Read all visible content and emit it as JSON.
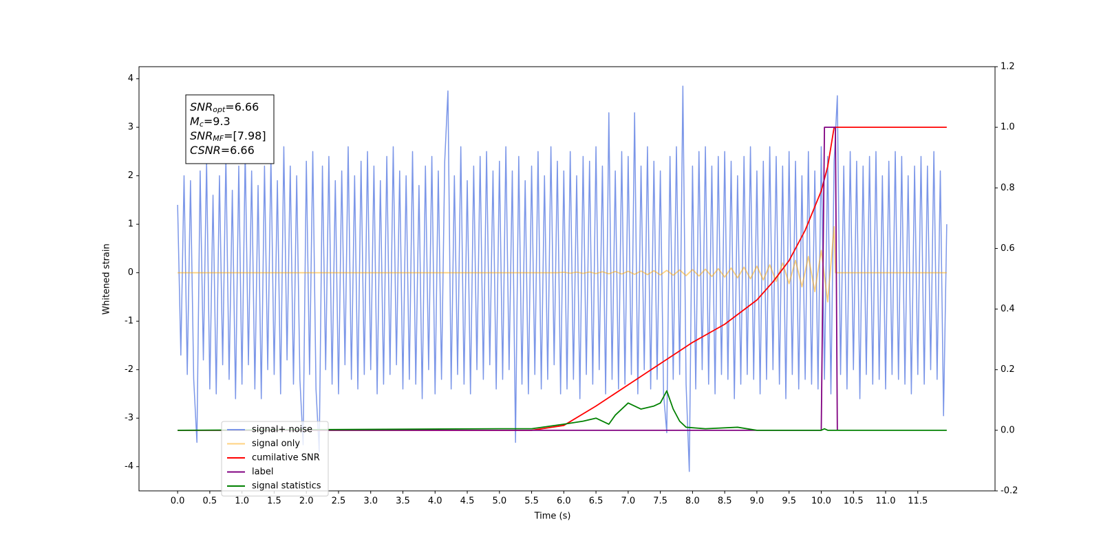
{
  "chart_data": {
    "type": "line",
    "xlabel": "Time (s)",
    "ylabel": "Whitened strain",
    "grid": false,
    "legend": "lower left",
    "xlim": [
      -0.6,
      12.7
    ],
    "ylim": [
      -4.5,
      4.25
    ],
    "y2lim": [
      -0.2,
      1.2
    ],
    "xticks": [
      {
        "value": 0,
        "label": "0.0"
      },
      0.5,
      {
        "value": 1,
        "label": "1.0"
      },
      1.5,
      {
        "value": 2,
        "label": "2.0"
      },
      2.5,
      {
        "value": 3,
        "label": "3.0"
      },
      3.5,
      {
        "value": 4,
        "label": "4.0"
      },
      4.5,
      {
        "value": 5,
        "label": "5.0"
      },
      5.5,
      {
        "value": 6,
        "label": "6.0"
      },
      6.5,
      {
        "value": 7,
        "label": "7.0"
      },
      7.5,
      {
        "value": 8,
        "label": "8.0"
      },
      8.5,
      {
        "value": 9,
        "label": "9.0"
      },
      9.5,
      {
        "value": 10,
        "label": "10.0"
      },
      10.5,
      {
        "value": 11,
        "label": "11.0"
      },
      11.5
    ],
    "yticks": [
      -4,
      -3,
      -2,
      -1,
      0,
      1,
      2,
      3,
      4
    ],
    "y2ticks": [
      -0.2,
      {
        "value": 0,
        "label": "0.0"
      },
      0.2,
      0.4,
      0.6,
      0.8,
      {
        "value": 1,
        "label": "1.0"
      },
      1.2
    ],
    "annotations": [
      {
        "text": "SNR",
        "subscript": "opt",
        "suffix": "=6.66"
      },
      {
        "text": "M",
        "subscript": "c",
        "suffix": "=9.3"
      },
      {
        "text": "SNR",
        "subscript": "MF",
        "suffix": "=[7.98]"
      },
      {
        "text": "CSNR",
        "suffix": "=6.66"
      }
    ],
    "series": [
      {
        "name": "signal+ noise",
        "color": "#7b96e8",
        "alpha": 1,
        "x": [
          0,
          0.05,
          0.1,
          0.15,
          0.2,
          0.25,
          0.3,
          0.35,
          0.4,
          0.45,
          0.5,
          0.55,
          0.6,
          0.65,
          0.7,
          0.75,
          0.8,
          0.85,
          0.9,
          0.95,
          1,
          1.05,
          1.1,
          1.15,
          1.2,
          1.25,
          1.3,
          1.35,
          1.4,
          1.45,
          1.5,
          1.55,
          1.6,
          1.65,
          1.7,
          1.75,
          1.8,
          1.85,
          1.9,
          1.95,
          2,
          2.05,
          2.1,
          2.15,
          2.2,
          2.25,
          2.3,
          2.35,
          2.4,
          2.45,
          2.5,
          2.55,
          2.6,
          2.65,
          2.7,
          2.75,
          2.8,
          2.85,
          2.9,
          2.95,
          3,
          3.05,
          3.1,
          3.15,
          3.2,
          3.25,
          3.3,
          3.35,
          3.4,
          3.45,
          3.5,
          3.55,
          3.6,
          3.65,
          3.7,
          3.75,
          3.8,
          3.85,
          3.9,
          3.95,
          4,
          4.05,
          4.1,
          4.15,
          4.2,
          4.25,
          4.3,
          4.35,
          4.4,
          4.45,
          4.5,
          4.55,
          4.6,
          4.65,
          4.7,
          4.75,
          4.8,
          4.85,
          4.9,
          4.95,
          5,
          5.05,
          5.1,
          5.15,
          5.2,
          5.25,
          5.3,
          5.35,
          5.4,
          5.45,
          5.5,
          5.55,
          5.6,
          5.65,
          5.7,
          5.75,
          5.8,
          5.85,
          5.9,
          5.95,
          6,
          6.05,
          6.1,
          6.15,
          6.2,
          6.25,
          6.3,
          6.35,
          6.4,
          6.45,
          6.5,
          6.55,
          6.6,
          6.65,
          6.7,
          6.75,
          6.8,
          6.85,
          6.9,
          6.95,
          7,
          7.05,
          7.1,
          7.15,
          7.2,
          7.25,
          7.3,
          7.35,
          7.4,
          7.45,
          7.5,
          7.55,
          7.6,
          7.65,
          7.7,
          7.75,
          7.8,
          7.85,
          7.9,
          7.95,
          8,
          8.05,
          8.1,
          8.15,
          8.2,
          8.25,
          8.3,
          8.35,
          8.4,
          8.45,
          8.5,
          8.55,
          8.6,
          8.65,
          8.7,
          8.75,
          8.8,
          8.85,
          8.9,
          8.95,
          9,
          9.05,
          9.1,
          9.15,
          9.2,
          9.25,
          9.3,
          9.35,
          9.4,
          9.45,
          9.5,
          9.55,
          9.6,
          9.65,
          9.7,
          9.75,
          9.8,
          9.85,
          9.9,
          9.95,
          10,
          10.05,
          10.1,
          10.15,
          10.2,
          10.25,
          10.3,
          10.35,
          10.4,
          10.45,
          10.5,
          10.55,
          10.6,
          10.65,
          10.7,
          10.75,
          10.8,
          10.85,
          10.9,
          10.95,
          11,
          11.05,
          11.1,
          11.15,
          11.2,
          11.25,
          11.3,
          11.35,
          11.4,
          11.45,
          11.5,
          11.55,
          11.6,
          11.65,
          11.7,
          11.75,
          11.8,
          11.85,
          11.9,
          11.95
        ],
        "values": [
          1.4,
          -1.7,
          2.0,
          -2.1,
          1.9,
          -2.2,
          -3.5,
          2.1,
          -1.8,
          2.3,
          -2.4,
          1.6,
          -2.5,
          2.0,
          -1.9,
          2.4,
          -2.2,
          1.7,
          -2.6,
          2.2,
          -2.3,
          2.5,
          -1.9,
          2.1,
          -2.4,
          1.8,
          -2.6,
          2.2,
          -2.0,
          2.4,
          -2.1,
          1.9,
          -2.5,
          2.6,
          -1.8,
          2.2,
          -2.3,
          2.0,
          -2.2,
          -3.55,
          2.3,
          -2.1,
          2.5,
          -2.4,
          -3.7,
          2.2,
          -2.0,
          2.4,
          -2.3,
          1.9,
          -2.5,
          2.1,
          -1.9,
          2.6,
          -2.2,
          2.0,
          -2.4,
          2.3,
          -2.1,
          2.5,
          -2.0,
          2.2,
          -2.5,
          1.9,
          -2.3,
          2.4,
          -2.1,
          2.6,
          -1.9,
          2.1,
          -2.4,
          2.0,
          -2.2,
          2.5,
          -2.3,
          1.8,
          -2.6,
          2.2,
          -2.0,
          2.4,
          -2.5,
          2.1,
          -2.2,
          2.3,
          3.75,
          -2.4,
          2.0,
          -2.1,
          2.6,
          -2.3,
          1.9,
          -2.5,
          2.2,
          -2.0,
          2.4,
          -2.2,
          2.5,
          -1.9,
          2.1,
          -2.4,
          2.3,
          -2.2,
          2.6,
          -2.0,
          2.1,
          -3.5,
          2.4,
          -2.3,
          1.9,
          -2.5,
          2.2,
          -2.1,
          2.5,
          -2.4,
          2.0,
          -2.2,
          2.6,
          -1.9,
          2.3,
          -2.5,
          2.1,
          -2.4,
          2.5,
          -2.2,
          2.0,
          -2.6,
          2.4,
          -2.1,
          2.3,
          -2.3,
          2.6,
          -2.0,
          2.2,
          -2.5,
          3.3,
          -2.2,
          2.1,
          -2.4,
          2.5,
          -2.3,
          2.4,
          -2.1,
          3.3,
          -2.5,
          2.2,
          -2.0,
          2.6,
          -2.4,
          2.3,
          -2.2,
          2.1,
          -2.5,
          -3.3,
          2.4,
          -2.2,
          2.6,
          -2.1,
          3.85,
          -2.3,
          -4.1,
          2.2,
          -2.4,
          2.5,
          -2.0,
          2.6,
          -2.3,
          2.2,
          -2.5,
          2.4,
          -2.1,
          2.5,
          -2.2,
          2.3,
          -2.6,
          2.0,
          -2.3,
          2.4,
          -2.1,
          2.6,
          -2.2,
          2.1,
          -2.5,
          2.3,
          -2.2,
          2.6,
          -2.0,
          2.4,
          -2.3,
          2.2,
          -2.6,
          2.5,
          -2.1,
          2.3,
          -2.4,
          2.0,
          -2.2,
          2.5,
          -2.3,
          2.1,
          -2.4,
          2.6,
          -2.2,
          2.4,
          -2.5,
          2.3,
          3.65,
          -2.1,
          2.2,
          -2.4,
          2.5,
          -2.0,
          2.3,
          -2.6,
          2.2,
          -2.1,
          2.4,
          -2.3,
          2.5,
          -2.2,
          2.0,
          -2.4,
          2.3,
          -2.1,
          2.5,
          -2.2,
          2.4,
          -2.3,
          2.0,
          -2.5,
          2.2,
          -2.1,
          2.4,
          -2.3,
          2.2,
          -2.0,
          2.5,
          -2.2,
          2.1,
          -2.95,
          1.0
        ]
      },
      {
        "name": "signal only",
        "color": "#ffa500",
        "alpha": 0.5,
        "x": [
          0,
          5.9,
          6.0,
          6.1,
          6.2,
          6.3,
          6.4,
          6.5,
          6.6,
          6.7,
          6.8,
          6.9,
          7.0,
          7.1,
          7.2,
          7.3,
          7.4,
          7.5,
          7.6,
          7.7,
          7.8,
          7.9,
          8.0,
          8.1,
          8.2,
          8.3,
          8.4,
          8.5,
          8.6,
          8.7,
          8.8,
          8.9,
          9.0,
          9.1,
          9.2,
          9.3,
          9.4,
          9.5,
          9.6,
          9.7,
          9.8,
          9.9,
          10.0,
          10.1,
          10.2,
          10.22,
          11.95
        ],
        "values": [
          0,
          0,
          0.01,
          -0.01,
          0.012,
          -0.013,
          0.015,
          -0.017,
          0.02,
          -0.022,
          0.025,
          -0.027,
          0.03,
          -0.033,
          0.036,
          -0.039,
          0.042,
          -0.045,
          0.048,
          -0.052,
          0.056,
          -0.06,
          0.064,
          -0.068,
          0.073,
          -0.078,
          0.084,
          -0.09,
          0.097,
          -0.105,
          0.114,
          -0.124,
          0.135,
          -0.148,
          0.163,
          -0.18,
          0.2,
          -0.225,
          0.255,
          -0.29,
          0.335,
          -0.39,
          0.46,
          -0.6,
          0.95,
          0,
          0
        ]
      },
      {
        "name": "cumilative SNR",
        "color": "#ff0000",
        "alpha": 1,
        "axis": "y2",
        "x": [
          0,
          5.5,
          6.0,
          6.5,
          7.0,
          7.5,
          8.0,
          8.5,
          9.0,
          9.25,
          9.5,
          9.75,
          10.0,
          10.1,
          10.2,
          11.95
        ],
        "values": [
          0,
          0,
          0.016,
          0.08,
          0.15,
          0.22,
          0.29,
          0.35,
          0.43,
          0.49,
          0.56,
          0.66,
          0.79,
          0.87,
          1.0,
          1.0
        ]
      },
      {
        "name": "label",
        "color": "#800080",
        "alpha": 1,
        "axis": "y2",
        "x": [
          0,
          10.0,
          10.05,
          10.22,
          10.25
        ],
        "values": [
          0,
          0,
          1,
          1,
          0
        ]
      },
      {
        "name": "signal statistics",
        "color": "#008000",
        "alpha": 1,
        "axis": "y2",
        "x": [
          0,
          5.0,
          5.5,
          6.0,
          6.3,
          6.5,
          6.7,
          6.8,
          7.0,
          7.2,
          7.4,
          7.5,
          7.6,
          7.7,
          7.8,
          7.9,
          8.2,
          8.7,
          9.0,
          10.0,
          10.05,
          10.1,
          11.95
        ],
        "values": [
          0,
          0.005,
          0.005,
          0.02,
          0.03,
          0.04,
          0.02,
          0.05,
          0.09,
          0.07,
          0.08,
          0.09,
          0.13,
          0.07,
          0.03,
          0.01,
          0.005,
          0.01,
          0,
          0,
          0.005,
          0,
          0
        ]
      }
    ]
  }
}
